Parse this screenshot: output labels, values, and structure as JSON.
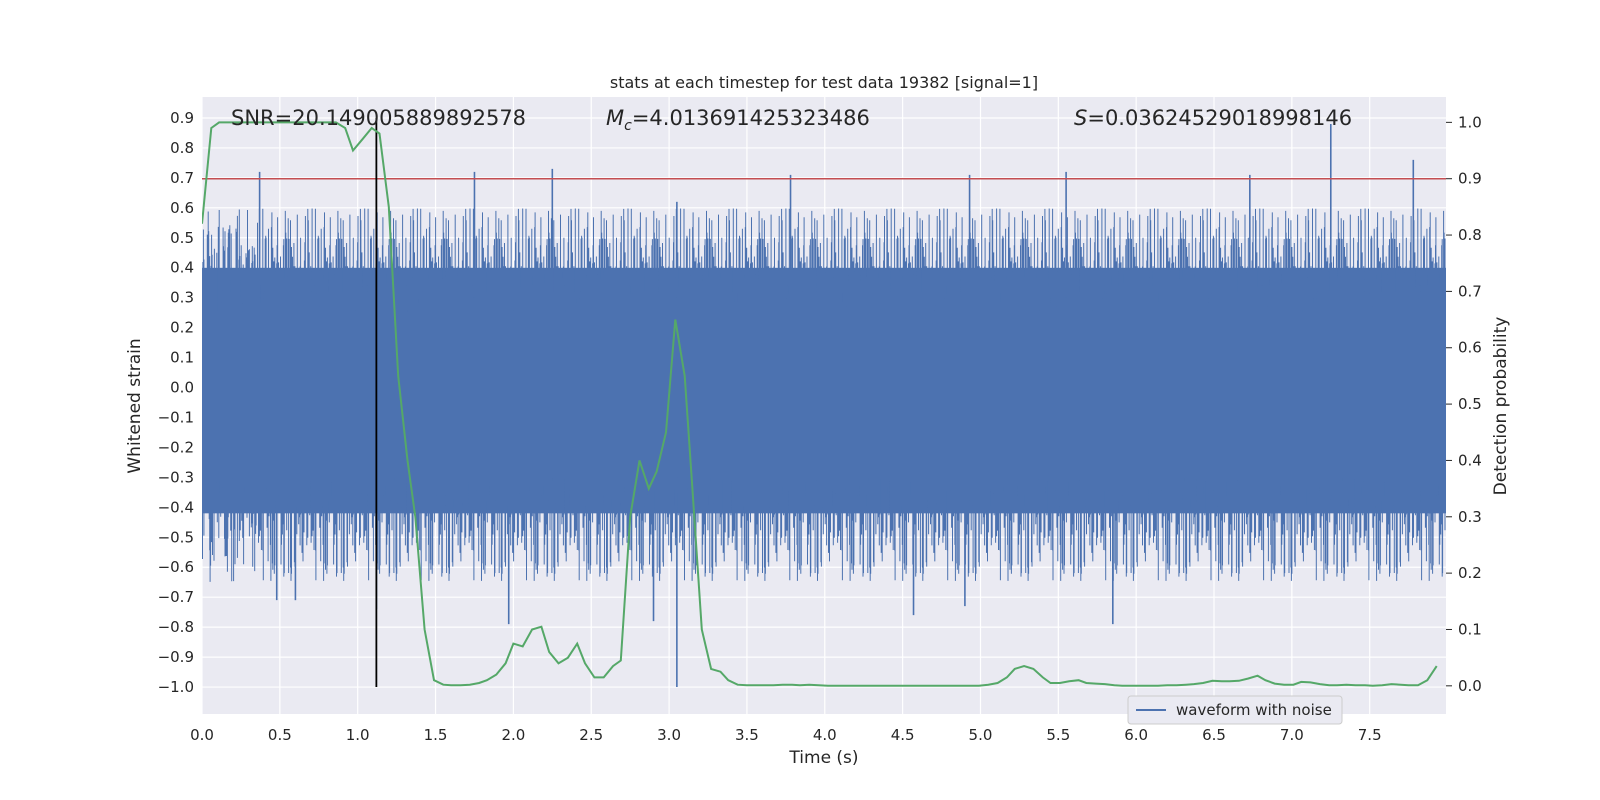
{
  "chart_data": {
    "type": "line",
    "title": "stats at each timestep for test data 19382 [signal=1]",
    "xlabel": "Time (s)",
    "ylabel_left": "Whitened strain",
    "ylabel_right": "Detection probability",
    "xlim": [
      0.0,
      7.99
    ],
    "ylim_left": [
      -1.09,
      0.97
    ],
    "ylim_right": [
      -0.05,
      1.045
    ],
    "x_ticks": [
      "0.0",
      "0.5",
      "1.0",
      "1.5",
      "2.0",
      "2.5",
      "3.0",
      "3.5",
      "4.0",
      "4.5",
      "5.0",
      "5.5",
      "6.0",
      "6.5",
      "7.0",
      "7.5"
    ],
    "y_ticks_left": [
      "0.9",
      "0.8",
      "0.7",
      "0.6",
      "0.5",
      "0.4",
      "0.3",
      "0.2",
      "0.1",
      "0.0",
      "−0.1",
      "−0.2",
      "−0.3",
      "−0.4",
      "−0.5",
      "−0.6",
      "−0.7",
      "−0.8",
      "−0.9",
      "−1.0"
    ],
    "y_ticks_right": [
      "1.0",
      "0.9",
      "0.8",
      "0.7",
      "0.6",
      "0.5",
      "0.4",
      "0.3",
      "0.2",
      "0.1",
      "0.0"
    ],
    "annotations": {
      "snr": "SNR=20.149005889892578",
      "mc_symbol": "M",
      "mc_sub": "c",
      "mc_value": "=4.013691425323486",
      "s_symbol": "S",
      "s_value": "=0.03624529018998146"
    },
    "legend": {
      "label": "waveform with noise",
      "placement": "lower-right"
    },
    "threshold": {
      "value": 0.9,
      "axis": "right",
      "color": "#c44e52"
    },
    "event_marker": {
      "x": 1.12,
      "y_from": -1.0,
      "y_to": 0.9,
      "color": "#000000"
    },
    "waveform": {
      "name": "waveform with noise",
      "color": "#4c72b0",
      "t_start": 0.0,
      "t_end": 7.99,
      "dense_range": [
        -0.42,
        0.4
      ],
      "typical_peak": [
        0.25,
        0.6
      ],
      "typical_trough": [
        -0.3,
        -0.65
      ],
      "extremes_pos": [
        [
          0.37,
          0.72
        ],
        [
          1.75,
          0.72
        ],
        [
          2.25,
          0.73
        ],
        [
          3.78,
          0.71
        ],
        [
          4.93,
          0.71
        ],
        [
          5.55,
          0.72
        ],
        [
          6.73,
          0.71
        ],
        [
          7.25,
          0.88
        ],
        [
          7.78,
          0.76
        ],
        [
          3.05,
          0.62
        ]
      ],
      "extremes_neg": [
        [
          0.48,
          -0.71
        ],
        [
          0.6,
          -0.71
        ],
        [
          1.97,
          -0.79
        ],
        [
          2.9,
          -0.78
        ],
        [
          3.05,
          -1.0
        ],
        [
          4.57,
          -0.76
        ],
        [
          5.85,
          -0.79
        ],
        [
          1.12,
          -0.74
        ],
        [
          4.9,
          -0.73
        ]
      ]
    },
    "series": [
      {
        "name": "detection probability",
        "axis": "right",
        "color": "#55a868",
        "x": [
          0.0,
          0.06,
          0.11,
          0.17,
          0.23,
          0.29,
          0.34,
          0.4,
          0.46,
          0.52,
          0.57,
          0.63,
          0.69,
          0.74,
          0.8,
          0.86,
          0.92,
          0.97,
          1.03,
          1.09,
          1.14,
          1.2,
          1.26,
          1.32,
          1.37,
          1.43,
          1.49,
          1.55,
          1.6,
          1.66,
          1.72,
          1.78,
          1.83,
          1.89,
          1.95,
          2.0,
          2.06,
          2.12,
          2.18,
          2.23,
          2.29,
          2.35,
          2.41,
          2.46,
          2.52,
          2.58,
          2.64,
          2.69,
          2.75,
          2.81,
          2.87,
          2.92,
          2.98,
          3.04,
          3.1,
          3.15,
          3.21,
          3.27,
          3.33,
          3.38,
          3.44,
          3.5,
          3.56,
          3.61,
          3.67,
          3.73,
          3.79,
          3.84,
          3.9,
          3.96,
          4.02,
          4.07,
          4.13,
          4.19,
          4.25,
          4.3,
          4.36,
          4.42,
          4.48,
          4.53,
          4.59,
          4.65,
          4.71,
          4.76,
          4.82,
          4.88,
          4.94,
          4.99,
          5.05,
          5.11,
          5.17,
          5.22,
          5.28,
          5.34,
          5.4,
          5.45,
          5.51,
          5.57,
          5.63,
          5.68,
          5.74,
          5.8,
          5.86,
          5.91,
          5.97,
          6.03,
          6.09,
          6.14,
          6.2,
          6.26,
          6.32,
          6.37,
          6.43,
          6.49,
          6.55,
          6.6,
          6.66,
          6.72,
          6.78,
          6.83,
          6.89,
          6.95,
          7.01,
          7.06,
          7.12,
          7.18,
          7.24,
          7.29,
          7.35,
          7.41,
          7.47,
          7.52,
          7.58,
          7.64,
          7.7,
          7.75,
          7.81,
          7.87,
          7.93
        ],
        "values": [
          0.82,
          0.99,
          1.0,
          1.0,
          1.0,
          1.0,
          1.0,
          1.0,
          1.0,
          1.0,
          1.0,
          1.0,
          1.0,
          1.0,
          1.0,
          1.0,
          0.99,
          0.95,
          0.97,
          0.99,
          0.98,
          0.85,
          0.55,
          0.4,
          0.3,
          0.1,
          0.01,
          0.002,
          0.001,
          0.001,
          0.002,
          0.005,
          0.01,
          0.02,
          0.04,
          0.075,
          0.07,
          0.1,
          0.105,
          0.06,
          0.04,
          0.05,
          0.075,
          0.04,
          0.015,
          0.015,
          0.035,
          0.045,
          0.3,
          0.4,
          0.35,
          0.38,
          0.45,
          0.65,
          0.55,
          0.35,
          0.1,
          0.03,
          0.025,
          0.01,
          0.002,
          0.001,
          0.001,
          0.001,
          0.001,
          0.002,
          0.002,
          0.001,
          0.002,
          0.001,
          0.0,
          0.0,
          0.0,
          0.0,
          0.0,
          0.0,
          0.0,
          0.0,
          0.0,
          0.0,
          0.0,
          0.0,
          0.0,
          0.0,
          0.0,
          0.0,
          0.0,
          0.0,
          0.002,
          0.005,
          0.015,
          0.03,
          0.035,
          0.03,
          0.015,
          0.005,
          0.005,
          0.008,
          0.01,
          0.005,
          0.004,
          0.003,
          0.001,
          0.0,
          0.0,
          0.0,
          0.0,
          0.0,
          0.001,
          0.001,
          0.002,
          0.003,
          0.005,
          0.009,
          0.008,
          0.008,
          0.009,
          0.013,
          0.018,
          0.01,
          0.004,
          0.002,
          0.002,
          0.007,
          0.006,
          0.003,
          0.001,
          0.001,
          0.002,
          0.001,
          0.001,
          0.0,
          0.001,
          0.003,
          0.002,
          0.001,
          0.001,
          0.01,
          0.035
        ]
      }
    ]
  }
}
